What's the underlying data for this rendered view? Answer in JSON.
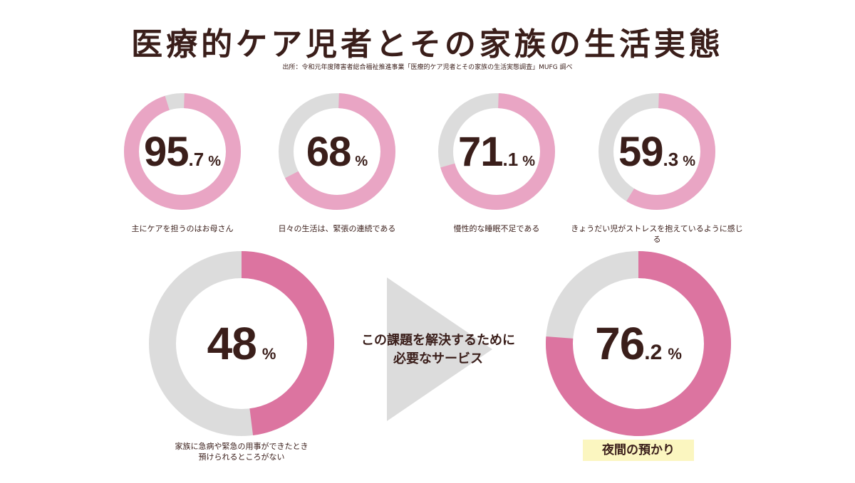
{
  "header": {
    "title": "医療的ケア児者とその家族の生活実態",
    "source": "出所：令和元年度障害者総合福祉推進事業「医療的ケア児者とその家族の生活実態調査」MUFG 調べ"
  },
  "colors": {
    "track": "#dcdcdc",
    "light_pink": "#e9a5c4",
    "deep_pink": "#dc74a0",
    "text": "#3a1e1a",
    "highlight": "#fbf6c0",
    "arrow": "#dcdcdc"
  },
  "chart_data": [
    {
      "type": "donut",
      "value": 95.7,
      "int": "95",
      "dec": ".7",
      "unit": "%",
      "caption": "主にケアを担うのはお母さん"
    },
    {
      "type": "donut",
      "value": 68,
      "int": "68",
      "dec": "",
      "unit": "%",
      "caption": "日々の生活は、緊張の連続である"
    },
    {
      "type": "donut",
      "value": 71.1,
      "int": "71",
      "dec": ".1",
      "unit": "%",
      "caption": "慢性的な睡眠不足である"
    },
    {
      "type": "donut",
      "value": 59.3,
      "int": "59",
      "dec": ".3",
      "unit": "%",
      "caption": "きょうだい児がストレスを抱えているように感じる"
    },
    {
      "type": "donut",
      "value": 48,
      "int": "48",
      "dec": "",
      "unit": "%",
      "caption_lines": [
        "家族に急病や緊急の用事ができたとき",
        "預けられるところがない"
      ]
    },
    {
      "type": "donut",
      "value": 76.2,
      "int": "76",
      "dec": ".2",
      "unit": "%",
      "caption": "夜間の預かり"
    }
  ],
  "middle": {
    "line1": "この課題を解決するために",
    "line2": "必要なサービス"
  }
}
